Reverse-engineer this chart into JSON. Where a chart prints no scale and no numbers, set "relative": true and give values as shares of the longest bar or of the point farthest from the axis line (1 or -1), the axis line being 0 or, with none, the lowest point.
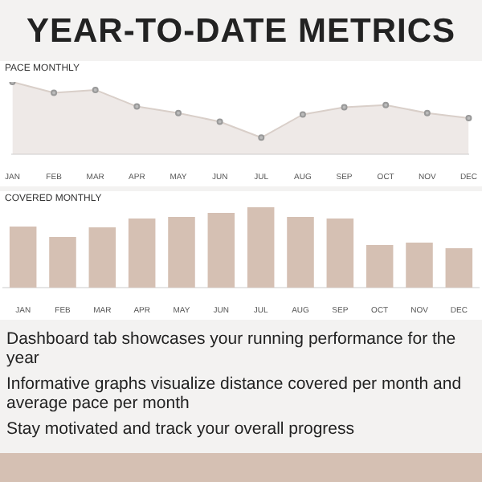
{
  "chart_data": [
    {
      "type": "other",
      "title": "YEAR-TO-DATE METRICS"
    },
    {
      "type": "area",
      "title": "PACE MONTHLY",
      "relative": true,
      "marker": "circle",
      "legend": false,
      "categories": [
        "JAN",
        "FEB",
        "MAR",
        "APR",
        "MAY",
        "JUN",
        "JUL",
        "AUG",
        "SEP",
        "OCT",
        "NOV",
        "DEC"
      ],
      "series": [
        {
          "color": "#d9cfc9",
          "values": [
            1,
            0.85,
            0.89,
            0.66,
            0.57,
            0.45,
            0.23,
            0.55,
            0.65,
            0.68,
            0.57,
            0.5
          ]
        }
      ]
    },
    {
      "type": "bar",
      "title": "COVERED MONTHLY",
      "relative": true,
      "legend": false,
      "categories": [
        "JAN",
        "FEB",
        "MAR",
        "APR",
        "MAY",
        "JUN",
        "JUL",
        "AUG",
        "SEP",
        "OCT",
        "NOV",
        "DEC"
      ],
      "series": [
        {
          "color": "#d5c0b3",
          "values": [
            0.76,
            0.63,
            0.75,
            0.86,
            0.88,
            0.93,
            1,
            0.88,
            0.86,
            0.53,
            0.56,
            0.49
          ]
        }
      ]
    },
    {
      "type": "other",
      "annotations": [
        "Dashboard tab showcases your running performance for the year",
        "Informative graphs visualize distance covered per month and average pace per month",
        "Stay motivated and track your overall progress"
      ]
    }
  ]
}
